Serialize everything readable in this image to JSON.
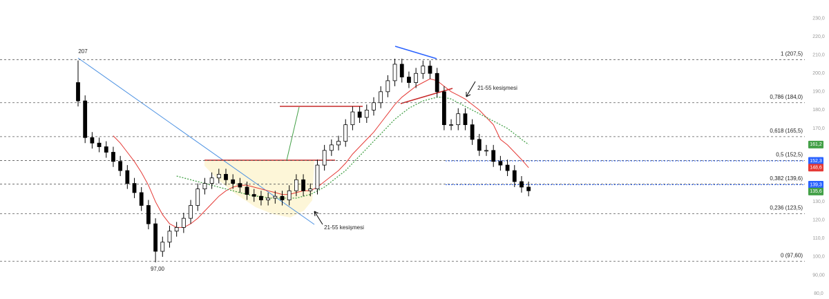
{
  "chart_data": {
    "type": "candlestick",
    "open": [
      195,
      185,
      165,
      162,
      160,
      157,
      152,
      147,
      140,
      135,
      128,
      118,
      103,
      108,
      114,
      116,
      121,
      128,
      137,
      140,
      143,
      145,
      142,
      140,
      138,
      134,
      133,
      131,
      132,
      133,
      131,
      136,
      142,
      136,
      137,
      150,
      158,
      161,
      163,
      172,
      179,
      176,
      180,
      184,
      190,
      196,
      205,
      198,
      195,
      200,
      204,
      200,
      190,
      172,
      172,
      178,
      172,
      164,
      158,
      158,
      152,
      150,
      147,
      141,
      138
    ],
    "high": [
      207,
      188,
      168,
      165,
      163,
      160,
      155,
      150,
      143,
      138,
      131,
      121,
      111,
      117,
      119,
      124,
      131,
      140,
      143,
      146,
      148,
      148,
      145,
      143,
      141,
      137,
      136,
      135,
      136,
      136,
      139,
      145,
      145,
      140,
      153,
      161,
      164,
      166,
      175,
      182,
      182,
      183,
      187,
      193,
      199,
      208,
      208,
      201,
      203,
      207,
      207,
      203,
      193,
      175,
      181,
      181,
      175,
      167,
      161,
      161,
      155,
      153,
      150,
      144,
      141
    ],
    "low": [
      182,
      162,
      159,
      157,
      154,
      149,
      144,
      137,
      132,
      125,
      115,
      97,
      100,
      105,
      111,
      113,
      118,
      125,
      134,
      137,
      140,
      139,
      137,
      135,
      131,
      130,
      128,
      128,
      129,
      128,
      128,
      133,
      133,
      133,
      134,
      147,
      155,
      158,
      160,
      169,
      173,
      173,
      177,
      181,
      187,
      193,
      195,
      192,
      192,
      197,
      197,
      187,
      169,
      169,
      169,
      169,
      161,
      155,
      155,
      149,
      147,
      144,
      138,
      135,
      133
    ],
    "close": [
      185,
      165,
      162,
      160,
      157,
      152,
      147,
      140,
      135,
      128,
      118,
      103,
      108,
      114,
      116,
      121,
      128,
      137,
      140,
      143,
      145,
      142,
      140,
      138,
      134,
      133,
      131,
      132,
      133,
      131,
      136,
      142,
      136,
      137,
      150,
      158,
      161,
      163,
      172,
      179,
      176,
      180,
      184,
      190,
      196,
      205,
      198,
      195,
      200,
      204,
      200,
      190,
      172,
      172,
      178,
      172,
      164,
      158,
      158,
      152,
      150,
      147,
      141,
      138,
      136
    ],
    "up_color": "#ffffff",
    "down_color": "#000000",
    "series": [
      {
        "color": "#e53935",
        "style": "solid",
        "values": [
          null,
          null,
          null,
          null,
          null,
          166,
          162,
          157,
          152,
          146,
          139,
          130,
          123,
          118,
          116,
          116,
          118,
          121,
          125,
          129,
          133,
          136,
          138,
          139,
          139,
          138,
          137,
          136,
          135,
          134,
          134,
          135,
          136,
          136,
          138,
          141,
          144,
          147,
          151,
          156,
          160,
          164,
          168,
          173,
          178,
          183,
          187,
          190,
          193,
          195,
          197,
          196,
          193,
          190,
          188,
          186,
          183,
          180,
          176,
          172,
          164,
          161,
          157,
          153,
          148.6
        ]
      },
      {
        "color": "#43a047",
        "style": "dotted",
        "values": [
          null,
          null,
          null,
          null,
          null,
          null,
          null,
          null,
          null,
          null,
          null,
          null,
          null,
          null,
          144,
          143,
          142,
          141,
          140,
          139,
          138,
          137,
          136,
          135,
          134,
          133,
          133,
          132,
          132,
          132,
          132,
          132,
          133,
          134,
          136,
          138,
          141,
          144,
          147,
          151,
          155,
          159,
          163,
          167,
          171,
          175,
          178,
          181,
          183,
          185,
          186,
          187,
          187,
          186,
          184,
          182,
          180,
          178,
          176,
          174,
          172,
          170,
          167,
          164,
          161.2
        ]
      }
    ],
    "ylim": [
      77,
      240
    ],
    "yticks": [
      {
        "value": 230,
        "label": "230,0"
      },
      {
        "value": 220,
        "label": "220,0"
      },
      {
        "value": 210,
        "label": "210,0"
      },
      {
        "value": 200,
        "label": "200,0"
      },
      {
        "value": 190,
        "label": "190,0"
      },
      {
        "value": 180,
        "label": "180,0"
      },
      {
        "value": 170,
        "label": "170,0"
      },
      {
        "value": 130,
        "label": "130,0"
      },
      {
        "value": 120,
        "label": "120,0"
      },
      {
        "value": 110,
        "label": "110,0"
      },
      {
        "value": 100,
        "label": "100,0"
      },
      {
        "value": 90,
        "label": "90,00"
      },
      {
        "value": 80,
        "label": "80,0"
      }
    ],
    "levels": [
      {
        "value": 207.5,
        "label": "1 (207,5)"
      },
      {
        "value": 184,
        "label": "0,786 (184,0)"
      },
      {
        "value": 165.5,
        "label": "0,618 (165,5)"
      },
      {
        "value": 152.5,
        "label": "0,5 (152,5)"
      },
      {
        "value": 139.6,
        "label": "0,382 (139,6)"
      },
      {
        "value": 123.5,
        "label": "0,236 (123,5)"
      },
      {
        "value": 97.6,
        "label": "0 (97,60)"
      }
    ],
    "price_labels": [
      {
        "value": 161.2,
        "label": "161,2",
        "color": "#43a047"
      },
      {
        "value": 152.3,
        "label": "152,3",
        "color": "#2962ff"
      },
      {
        "value": 148.6,
        "label": "148,6",
        "color": "#e53935"
      },
      {
        "value": 139.3,
        "label": "139,3",
        "color": "#2962ff"
      },
      {
        "value": 135.6,
        "label": "135,6",
        "color": "#43a047"
      }
    ],
    "price_lines": [
      152.3,
      139.3
    ],
    "annotations": [
      "207",
      "97,00",
      "21-55 kesişmesi",
      "21-55 kesişmesi"
    ]
  }
}
